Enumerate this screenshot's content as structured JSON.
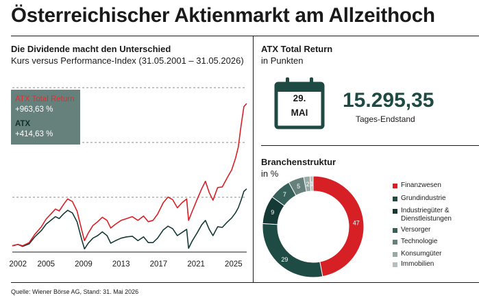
{
  "title": "Österreichischer Aktienmarkt am Allzeithoch",
  "left_panel": {
    "heading": "Die Dividende macht den Unterschied",
    "subheading": "Kurs versus Performance-Index (31.05.2001 – 31.05.2026)",
    "legend": [
      {
        "label": "ATX Total Return",
        "value": "+963,63 %",
        "color": "#d71f26"
      },
      {
        "label": "ATX",
        "value": "+414,63 %",
        "color": "#153a36"
      }
    ]
  },
  "total_return_panel": {
    "heading": "ATX Total Return",
    "subheading": "in Punkten",
    "calendar_day": "29.",
    "calendar_month": "MAI",
    "value": "15.295,35",
    "caption": "Tages-Endstand",
    "calendar_icon": "calendar-icon"
  },
  "sector_panel": {
    "heading": "Branchenstruktur",
    "subheading": "in %"
  },
  "source": "Quelle: Wiener Börse AG, Stand: 31. Mai 2026",
  "chart_data": [
    {
      "type": "line",
      "title": "Die Dividende macht den Unterschied",
      "subtitle": "Kurs versus Performance-Index (31.05.2001 – 31.05.2026)",
      "xlabel": "",
      "ylabel": "",
      "x_ticks": [
        "2002",
        "2005",
        "2009",
        "2013",
        "2017",
        "2021",
        "2025"
      ],
      "x_range": [
        2001.4,
        2026.4
      ],
      "grid": "horizontal dashed",
      "legend_placement": "top-left",
      "series": [
        {
          "name": "ATX Total Return",
          "color": "#d71f26",
          "points": [
            [
              2001.4,
              0.0
            ],
            [
              2002.0,
              0.02
            ],
            [
              2002.5,
              0.0
            ],
            [
              2003.2,
              0.05
            ],
            [
              2003.8,
              0.18
            ],
            [
              2004.5,
              0.3
            ],
            [
              2005.0,
              0.42
            ],
            [
              2005.5,
              0.5
            ],
            [
              2006.0,
              0.58
            ],
            [
              2006.4,
              0.55
            ],
            [
              2006.9,
              0.66
            ],
            [
              2007.3,
              0.74
            ],
            [
              2007.8,
              0.7
            ],
            [
              2008.3,
              0.55
            ],
            [
              2008.8,
              0.25
            ],
            [
              2009.1,
              0.08
            ],
            [
              2009.5,
              0.2
            ],
            [
              2010.0,
              0.32
            ],
            [
              2010.5,
              0.38
            ],
            [
              2011.0,
              0.45
            ],
            [
              2011.5,
              0.4
            ],
            [
              2011.9,
              0.28
            ],
            [
              2012.4,
              0.34
            ],
            [
              2013.0,
              0.4
            ],
            [
              2013.6,
              0.43
            ],
            [
              2014.2,
              0.46
            ],
            [
              2014.8,
              0.4
            ],
            [
              2015.4,
              0.47
            ],
            [
              2015.9,
              0.38
            ],
            [
              2016.4,
              0.4
            ],
            [
              2016.9,
              0.5
            ],
            [
              2017.5,
              0.68
            ],
            [
              2018.0,
              0.77
            ],
            [
              2018.5,
              0.73
            ],
            [
              2019.0,
              0.6
            ],
            [
              2019.5,
              0.68
            ],
            [
              2020.0,
              0.74
            ],
            [
              2020.2,
              0.4
            ],
            [
              2020.6,
              0.55
            ],
            [
              2021.1,
              0.73
            ],
            [
              2021.6,
              0.9
            ],
            [
              2022.0,
              1.02
            ],
            [
              2022.4,
              0.84
            ],
            [
              2022.8,
              0.72
            ],
            [
              2023.3,
              0.92
            ],
            [
              2023.8,
              0.93
            ],
            [
              2024.3,
              1.07
            ],
            [
              2024.8,
              1.2
            ],
            [
              2025.2,
              1.38
            ],
            [
              2025.5,
              1.56
            ],
            [
              2025.8,
              1.9
            ],
            [
              2026.1,
              2.2
            ],
            [
              2026.4,
              2.25
            ]
          ]
        },
        {
          "name": "ATX",
          "color": "#153a36",
          "points": [
            [
              2001.4,
              0.0
            ],
            [
              2002.0,
              0.02
            ],
            [
              2002.5,
              -0.01
            ],
            [
              2003.2,
              0.03
            ],
            [
              2003.8,
              0.14
            ],
            [
              2004.5,
              0.24
            ],
            [
              2005.0,
              0.34
            ],
            [
              2005.5,
              0.4
            ],
            [
              2006.0,
              0.46
            ],
            [
              2006.4,
              0.43
            ],
            [
              2006.9,
              0.51
            ],
            [
              2007.3,
              0.56
            ],
            [
              2007.8,
              0.52
            ],
            [
              2008.3,
              0.38
            ],
            [
              2008.8,
              0.1
            ],
            [
              2009.1,
              -0.05
            ],
            [
              2009.5,
              0.04
            ],
            [
              2010.0,
              0.12
            ],
            [
              2010.5,
              0.16
            ],
            [
              2011.0,
              0.22
            ],
            [
              2011.5,
              0.16
            ],
            [
              2011.9,
              0.04
            ],
            [
              2012.4,
              0.08
            ],
            [
              2013.0,
              0.12
            ],
            [
              2013.6,
              0.14
            ],
            [
              2014.2,
              0.15
            ],
            [
              2014.8,
              0.08
            ],
            [
              2015.4,
              0.14
            ],
            [
              2015.9,
              0.05
            ],
            [
              2016.4,
              0.05
            ],
            [
              2016.9,
              0.12
            ],
            [
              2017.5,
              0.25
            ],
            [
              2018.0,
              0.31
            ],
            [
              2018.5,
              0.27
            ],
            [
              2019.0,
              0.16
            ],
            [
              2019.5,
              0.21
            ],
            [
              2020.0,
              0.26
            ],
            [
              2020.2,
              -0.04
            ],
            [
              2020.6,
              0.08
            ],
            [
              2021.1,
              0.2
            ],
            [
              2021.6,
              0.33
            ],
            [
              2022.0,
              0.4
            ],
            [
              2022.4,
              0.26
            ],
            [
              2022.8,
              0.16
            ],
            [
              2023.3,
              0.3
            ],
            [
              2023.8,
              0.29
            ],
            [
              2024.3,
              0.37
            ],
            [
              2024.8,
              0.44
            ],
            [
              2025.2,
              0.52
            ],
            [
              2025.5,
              0.6
            ],
            [
              2025.8,
              0.72
            ],
            [
              2026.1,
              0.86
            ],
            [
              2026.4,
              0.9
            ]
          ]
        }
      ]
    },
    {
      "type": "pie",
      "title": "Branchenstruktur",
      "subtitle": "in %",
      "legend_placement": "right",
      "categories": [
        "Finanzwesen",
        "Grundindustrie",
        "Industriegüter & Dienstleistungen",
        "Versorger",
        "Technologie",
        "Konsumgüter",
        "Immobilien"
      ],
      "values": [
        47,
        29,
        9,
        7,
        5,
        2,
        1
      ],
      "labels": [
        "47",
        "29",
        "9",
        "7",
        "5",
        "2",
        "1"
      ],
      "colors": [
        "#d71f26",
        "#1e4b44",
        "#153a36",
        "#36605a",
        "#66817b",
        "#99aaa5",
        "#b6bfbc"
      ]
    }
  ]
}
